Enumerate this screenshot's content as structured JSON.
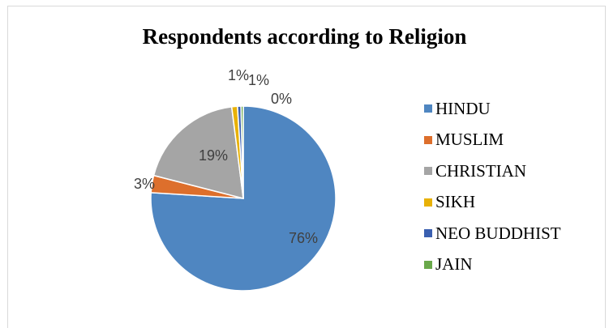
{
  "chart_data": {
    "type": "pie",
    "title": "Respondents according to Religion",
    "categories": [
      "HINDU",
      "MUSLIM",
      "CHRISTIAN",
      "SIKH",
      "NEO BUDDHIST",
      "JAIN"
    ],
    "values": [
      76,
      3,
      19,
      1,
      0.6,
      0.4
    ],
    "labels": [
      "76%",
      "3%",
      "19%",
      "1%",
      "1%",
      "0%"
    ],
    "colors": [
      "#4f86c1",
      "#dd6f2c",
      "#a5a5a5",
      "#e8b106",
      "#3a5fb0",
      "#69a84a"
    ],
    "start_angle_deg": 0,
    "direction": "clockwise",
    "legend_position": "right"
  }
}
